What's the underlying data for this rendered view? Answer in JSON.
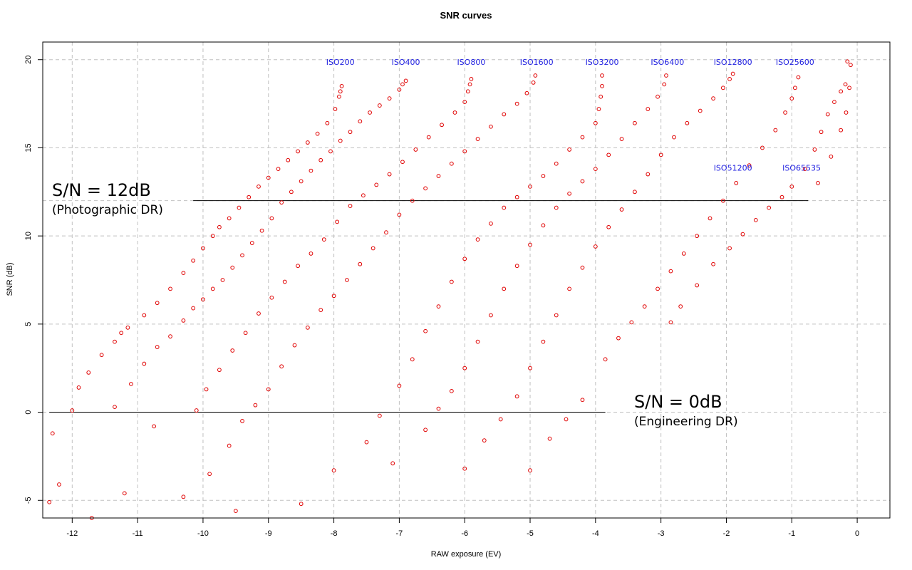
{
  "chart_data": {
    "type": "scatter",
    "title": "SNR curves",
    "xlabel": "RAW exposure (EV)",
    "ylabel": "SNR (dB)",
    "xlim": [
      -12.45,
      0.5
    ],
    "ylim": [
      -6,
      21
    ],
    "xticks": [
      -12,
      -11,
      -10,
      -9,
      -8,
      -7,
      -6,
      -5,
      -4,
      -3,
      -2,
      -1,
      0
    ],
    "yticks": [
      -5,
      0,
      5,
      10,
      15,
      20
    ],
    "grid": true,
    "point_color": "#e00000",
    "label_color": "#2020e0",
    "reference_lines": [
      {
        "y": 12,
        "x_from": -10.15,
        "x_to": -0.75,
        "title": "S/N = 12dB",
        "subtitle": "(Photographic DR)"
      },
      {
        "y": 0,
        "x_from": -12.35,
        "x_to": -3.85,
        "title": "S/N = 0dB",
        "subtitle": "(Engineering DR)"
      }
    ],
    "series": [
      {
        "name": "ISO200",
        "label_x": -7.9,
        "label_y": 19.7,
        "points": [
          [
            -12.35,
            -5.1
          ],
          [
            -12.3,
            -1.2
          ],
          [
            -12.2,
            -4.1
          ],
          [
            -12.0,
            0.1
          ],
          [
            -11.9,
            1.4
          ],
          [
            -11.75,
            2.25
          ],
          [
            -11.55,
            3.25
          ],
          [
            -11.35,
            4.0
          ],
          [
            -11.25,
            4.5
          ],
          [
            -11.15,
            4.8
          ],
          [
            -10.9,
            5.5
          ],
          [
            -10.7,
            6.2
          ],
          [
            -10.5,
            7.0
          ],
          [
            -10.3,
            7.9
          ],
          [
            -10.15,
            8.6
          ],
          [
            -10.0,
            9.3
          ],
          [
            -9.85,
            10.0
          ],
          [
            -9.75,
            10.5
          ],
          [
            -9.6,
            11.0
          ],
          [
            -9.45,
            11.6
          ],
          [
            -9.3,
            12.2
          ],
          [
            -9.15,
            12.8
          ],
          [
            -9.0,
            13.3
          ],
          [
            -8.85,
            13.8
          ],
          [
            -8.7,
            14.3
          ],
          [
            -8.55,
            14.8
          ],
          [
            -8.4,
            15.3
          ],
          [
            -8.25,
            15.8
          ],
          [
            -8.1,
            16.4
          ],
          [
            -7.98,
            17.2
          ],
          [
            -7.92,
            17.9
          ],
          [
            -7.9,
            18.2
          ],
          [
            -7.88,
            18.5
          ]
        ]
      },
      {
        "name": "ISO400",
        "label_x": -6.9,
        "label_y": 19.7,
        "points": [
          [
            -11.7,
            -6.0
          ],
          [
            -11.35,
            0.3
          ],
          [
            -11.1,
            1.6
          ],
          [
            -10.9,
            2.75
          ],
          [
            -10.7,
            3.7
          ],
          [
            -10.5,
            4.3
          ],
          [
            -10.3,
            5.2
          ],
          [
            -10.15,
            5.9
          ],
          [
            -10.0,
            6.4
          ],
          [
            -9.85,
            7.0
          ],
          [
            -9.7,
            7.5
          ],
          [
            -9.55,
            8.2
          ],
          [
            -9.4,
            8.9
          ],
          [
            -9.25,
            9.6
          ],
          [
            -9.1,
            10.3
          ],
          [
            -8.95,
            11.0
          ],
          [
            -8.8,
            11.9
          ],
          [
            -8.65,
            12.5
          ],
          [
            -8.5,
            13.1
          ],
          [
            -8.35,
            13.7
          ],
          [
            -8.2,
            14.3
          ],
          [
            -8.05,
            14.8
          ],
          [
            -7.9,
            15.4
          ],
          [
            -7.75,
            15.9
          ],
          [
            -7.6,
            16.5
          ],
          [
            -7.45,
            17.0
          ],
          [
            -7.3,
            17.4
          ],
          [
            -7.15,
            17.8
          ],
          [
            -7.0,
            18.3
          ],
          [
            -6.95,
            18.6
          ],
          [
            -6.9,
            18.8
          ]
        ]
      },
      {
        "name": "ISO800",
        "label_x": -5.9,
        "label_y": 19.7,
        "points": [
          [
            -11.2,
            -4.6
          ],
          [
            -10.75,
            -0.8
          ],
          [
            -10.3,
            -4.8
          ],
          [
            -10.1,
            0.1
          ],
          [
            -9.95,
            1.3
          ],
          [
            -9.75,
            2.4
          ],
          [
            -9.55,
            3.5
          ],
          [
            -9.35,
            4.5
          ],
          [
            -9.15,
            5.6
          ],
          [
            -8.95,
            6.5
          ],
          [
            -8.75,
            7.4
          ],
          [
            -8.55,
            8.3
          ],
          [
            -8.35,
            9.0
          ],
          [
            -8.15,
            9.8
          ],
          [
            -7.95,
            10.8
          ],
          [
            -7.75,
            11.7
          ],
          [
            -7.55,
            12.3
          ],
          [
            -7.35,
            12.9
          ],
          [
            -7.15,
            13.5
          ],
          [
            -6.95,
            14.2
          ],
          [
            -6.75,
            14.9
          ],
          [
            -6.55,
            15.6
          ],
          [
            -6.35,
            16.3
          ],
          [
            -6.15,
            17.0
          ],
          [
            -6.0,
            17.6
          ],
          [
            -5.95,
            18.2
          ],
          [
            -5.92,
            18.6
          ],
          [
            -5.9,
            18.9
          ]
        ]
      },
      {
        "name": "ISO1600",
        "label_x": -4.9,
        "label_y": 19.7,
        "points": [
          [
            -9.9,
            -3.5
          ],
          [
            -9.6,
            -1.9
          ],
          [
            -9.4,
            -0.5
          ],
          [
            -9.2,
            0.4
          ],
          [
            -9.0,
            1.3
          ],
          [
            -8.8,
            2.6
          ],
          [
            -8.6,
            3.8
          ],
          [
            -8.4,
            4.8
          ],
          [
            -8.2,
            5.8
          ],
          [
            -8.0,
            6.6
          ],
          [
            -7.8,
            7.5
          ],
          [
            -7.6,
            8.4
          ],
          [
            -7.4,
            9.3
          ],
          [
            -7.2,
            10.2
          ],
          [
            -7.0,
            11.2
          ],
          [
            -6.8,
            12.0
          ],
          [
            -6.6,
            12.7
          ],
          [
            -6.4,
            13.4
          ],
          [
            -6.2,
            14.1
          ],
          [
            -6.0,
            14.8
          ],
          [
            -5.8,
            15.5
          ],
          [
            -5.6,
            16.2
          ],
          [
            -5.4,
            16.9
          ],
          [
            -5.2,
            17.5
          ],
          [
            -5.05,
            18.1
          ],
          [
            -4.95,
            18.7
          ],
          [
            -4.92,
            19.1
          ]
        ]
      },
      {
        "name": "ISO3200",
        "label_x": -3.9,
        "label_y": 19.7,
        "points": [
          [
            -9.5,
            -5.6
          ],
          [
            -8.5,
            -5.2
          ],
          [
            -8.0,
            -3.3
          ],
          [
            -7.5,
            -1.7
          ],
          [
            -7.3,
            -0.2
          ],
          [
            -7.0,
            1.5
          ],
          [
            -6.8,
            3.0
          ],
          [
            -6.6,
            4.6
          ],
          [
            -6.4,
            6.0
          ],
          [
            -6.2,
            7.4
          ],
          [
            -6.0,
            8.7
          ],
          [
            -5.8,
            9.8
          ],
          [
            -5.6,
            10.7
          ],
          [
            -5.4,
            11.6
          ],
          [
            -5.2,
            12.2
          ],
          [
            -5.0,
            12.8
          ],
          [
            -4.8,
            13.4
          ],
          [
            -4.6,
            14.1
          ],
          [
            -4.4,
            14.9
          ],
          [
            -4.2,
            15.6
          ],
          [
            -4.0,
            16.4
          ],
          [
            -3.95,
            17.2
          ],
          [
            -3.92,
            17.9
          ],
          [
            -3.9,
            18.5
          ],
          [
            -3.9,
            19.1
          ]
        ]
      },
      {
        "name": "ISO6400",
        "label_x": -2.9,
        "label_y": 19.7,
        "points": [
          [
            -7.1,
            -2.9
          ],
          [
            -6.6,
            -1.0
          ],
          [
            -6.4,
            0.2
          ],
          [
            -6.2,
            1.2
          ],
          [
            -6.0,
            2.5
          ],
          [
            -5.8,
            4.0
          ],
          [
            -5.6,
            5.5
          ],
          [
            -5.4,
            7.0
          ],
          [
            -5.2,
            8.3
          ],
          [
            -5.0,
            9.5
          ],
          [
            -4.8,
            10.6
          ],
          [
            -4.6,
            11.6
          ],
          [
            -4.4,
            12.4
          ],
          [
            -4.2,
            13.1
          ],
          [
            -4.0,
            13.8
          ],
          [
            -3.8,
            14.6
          ],
          [
            -3.6,
            15.5
          ],
          [
            -3.4,
            16.4
          ],
          [
            -3.2,
            17.2
          ],
          [
            -3.05,
            17.9
          ],
          [
            -2.95,
            18.6
          ],
          [
            -2.92,
            19.1
          ]
        ]
      },
      {
        "name": "ISO12800",
        "label_x": -1.9,
        "label_y": 19.7,
        "points": [
          [
            -6.0,
            -3.2
          ],
          [
            -5.7,
            -1.6
          ],
          [
            -5.45,
            -0.4
          ],
          [
            -5.2,
            0.9
          ],
          [
            -5.0,
            2.5
          ],
          [
            -4.8,
            4.0
          ],
          [
            -4.6,
            5.5
          ],
          [
            -4.4,
            7.0
          ],
          [
            -4.2,
            8.2
          ],
          [
            -4.0,
            9.4
          ],
          [
            -3.8,
            10.5
          ],
          [
            -3.6,
            11.5
          ],
          [
            -3.4,
            12.5
          ],
          [
            -3.2,
            13.5
          ],
          [
            -3.0,
            14.6
          ],
          [
            -2.8,
            15.6
          ],
          [
            -2.6,
            16.4
          ],
          [
            -2.4,
            17.1
          ],
          [
            -2.2,
            17.8
          ],
          [
            -2.05,
            18.4
          ],
          [
            -1.95,
            18.9
          ],
          [
            -1.9,
            19.2
          ]
        ]
      },
      {
        "name": "ISO25600",
        "label_x": -0.95,
        "label_y": 19.7,
        "points": [
          [
            -5.0,
            -3.3
          ],
          [
            -4.7,
            -1.5
          ],
          [
            -4.45,
            -0.4
          ],
          [
            -4.2,
            0.7
          ],
          [
            -3.85,
            3.0
          ],
          [
            -3.65,
            4.2
          ],
          [
            -3.45,
            5.1
          ],
          [
            -3.25,
            6.0
          ],
          [
            -3.05,
            7.0
          ],
          [
            -2.85,
            8.0
          ],
          [
            -2.65,
            9.0
          ],
          [
            -2.45,
            10.0
          ],
          [
            -2.25,
            11.0
          ],
          [
            -2.05,
            12.0
          ],
          [
            -1.85,
            13.0
          ],
          [
            -1.65,
            14.0
          ],
          [
            -1.45,
            15.0
          ],
          [
            -1.25,
            16.0
          ],
          [
            -1.1,
            17.0
          ],
          [
            -1.0,
            17.8
          ],
          [
            -0.95,
            18.4
          ],
          [
            -0.9,
            19.0
          ]
        ]
      },
      {
        "name": "ISO51200",
        "label_x": -1.9,
        "label_y": 13.7,
        "points": [
          [
            -2.85,
            5.1
          ],
          [
            -2.7,
            6.0
          ],
          [
            -2.45,
            7.2
          ],
          [
            -2.2,
            8.4
          ],
          [
            -1.95,
            9.3
          ],
          [
            -1.75,
            10.1
          ],
          [
            -1.55,
            10.9
          ],
          [
            -1.35,
            11.6
          ],
          [
            -1.15,
            12.2
          ],
          [
            -1.0,
            12.8
          ],
          [
            -0.8,
            13.8
          ],
          [
            -0.65,
            14.9
          ],
          [
            -0.55,
            15.9
          ],
          [
            -0.45,
            16.9
          ],
          [
            -0.35,
            17.6
          ],
          [
            -0.25,
            18.2
          ],
          [
            -0.18,
            18.6
          ]
        ]
      },
      {
        "name": "ISO65535",
        "label_x": -0.85,
        "label_y": 13.7,
        "points": [
          [
            -0.6,
            13.0
          ],
          [
            -0.4,
            14.5
          ],
          [
            -0.25,
            16.0
          ],
          [
            -0.17,
            17.0
          ],
          [
            -0.12,
            18.4
          ],
          [
            -0.1,
            19.7
          ],
          [
            -0.15,
            19.9
          ]
        ]
      }
    ]
  }
}
